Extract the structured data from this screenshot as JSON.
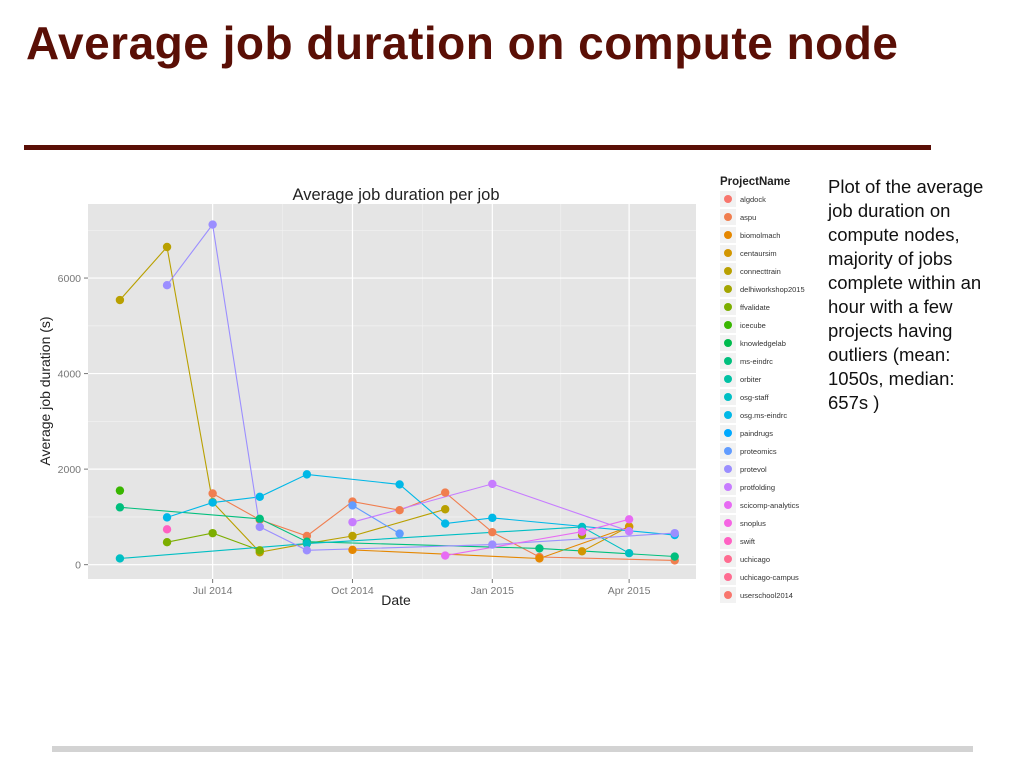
{
  "slide": {
    "title": "Average job duration on compute node",
    "description": "Plot of the average job duration on compute nodes, majority of jobs complete within an hour with a few projects having outliers (mean:  1050s, median: 657s )"
  },
  "colors": {
    "title": "#5a0f06",
    "panel_bg": "#e5e5e5",
    "grid": "#ffffff"
  },
  "chart_data": {
    "type": "line",
    "title": "Average job duration per job",
    "xlabel": "Date",
    "ylabel": "Average job duration (s)",
    "xlim": [
      "2014-04-10",
      "2015-05-15"
    ],
    "ylim": [
      -300,
      7550
    ],
    "x_ticks": [
      {
        "date": "2014-07-01",
        "label": "Jul 2014"
      },
      {
        "date": "2014-10-01",
        "label": "Oct 2014"
      },
      {
        "date": "2015-01-01",
        "label": "Jan 2015"
      },
      {
        "date": "2015-04-01",
        "label": "Apr 2015"
      }
    ],
    "y_ticks": [
      {
        "value": 0,
        "label": "0"
      },
      {
        "value": 2000,
        "label": "2000"
      },
      {
        "value": 4000,
        "label": "4000"
      },
      {
        "value": 6000,
        "label": "6000"
      }
    ],
    "legend_title": "ProjectName",
    "series": [
      {
        "name": "algdock",
        "color": "#F8766D",
        "points": []
      },
      {
        "name": "aspu",
        "color": "#F07E4F",
        "points": [
          [
            "2014-07-01",
            1490
          ],
          [
            "2014-08-01",
            940
          ],
          [
            "2014-09-01",
            600
          ],
          [
            "2014-10-01",
            1320
          ],
          [
            "2014-11-01",
            1140
          ],
          [
            "2014-12-01",
            1510
          ],
          [
            "2015-01-01",
            680
          ],
          [
            "2015-02-01",
            160
          ],
          [
            "2015-05-01",
            90
          ]
        ]
      },
      {
        "name": "biomolmach",
        "color": "#E58700",
        "points": [
          [
            "2014-10-01",
            310
          ],
          [
            "2015-02-01",
            130
          ],
          [
            "2015-04-01",
            790
          ]
        ]
      },
      {
        "name": "centaursim",
        "color": "#D29600",
        "points": [
          [
            "2015-03-01",
            280
          ],
          [
            "2015-04-01",
            800
          ]
        ]
      },
      {
        "name": "connecttrain",
        "color": "#B9A000",
        "points": [
          [
            "2014-05-01",
            5540
          ],
          [
            "2014-06-01",
            6650
          ],
          [
            "2014-07-01",
            1310
          ],
          [
            "2014-08-01",
            260
          ],
          [
            "2014-09-01",
            440
          ],
          [
            "2014-10-01",
            600
          ],
          [
            "2014-12-01",
            1160
          ]
        ]
      },
      {
        "name": "delhiworkshop2015",
        "color": "#A3A500",
        "points": [
          [
            "2015-03-01",
            620
          ]
        ]
      },
      {
        "name": "ffvalidate",
        "color": "#7CAE00",
        "points": [
          [
            "2014-06-01",
            470
          ],
          [
            "2014-07-01",
            660
          ],
          [
            "2014-08-01",
            300
          ]
        ]
      },
      {
        "name": "icecube",
        "color": "#39B600",
        "points": [
          [
            "2014-05-01",
            1550
          ]
        ]
      },
      {
        "name": "knowledgelab",
        "color": "#00BB4E",
        "points": []
      },
      {
        "name": "ms-eindrc",
        "color": "#00BF7D",
        "points": [
          [
            "2014-05-01",
            1200
          ],
          [
            "2014-08-01",
            960
          ],
          [
            "2014-09-01",
            480
          ],
          [
            "2015-02-01",
            340
          ],
          [
            "2015-05-01",
            170
          ]
        ]
      },
      {
        "name": "orbiter",
        "color": "#00C1A3",
        "points": []
      },
      {
        "name": "osg-staff",
        "color": "#00BFC4",
        "points": [
          [
            "2014-05-01",
            130
          ],
          [
            "2014-09-01",
            440
          ],
          [
            "2015-03-01",
            790
          ],
          [
            "2015-04-01",
            240
          ]
        ]
      },
      {
        "name": "osg.ms-eindrc",
        "color": "#00B8E7",
        "points": [
          [
            "2014-06-01",
            990
          ],
          [
            "2014-07-01",
            1300
          ],
          [
            "2014-08-01",
            1420
          ],
          [
            "2014-09-01",
            1890
          ],
          [
            "2014-11-01",
            1680
          ],
          [
            "2014-12-01",
            860
          ],
          [
            "2015-01-01",
            980
          ],
          [
            "2015-05-01",
            620
          ]
        ]
      },
      {
        "name": "paindrugs",
        "color": "#00A9FF",
        "points": []
      },
      {
        "name": "proteomics",
        "color": "#619CFF",
        "points": [
          [
            "2014-10-01",
            1240
          ],
          [
            "2014-11-01",
            650
          ]
        ]
      },
      {
        "name": "protevol",
        "color": "#9B8EFF",
        "points": [
          [
            "2014-06-01",
            5850
          ],
          [
            "2014-07-01",
            7120
          ],
          [
            "2014-08-01",
            790
          ],
          [
            "2014-09-01",
            300
          ],
          [
            "2015-01-01",
            420
          ],
          [
            "2015-05-01",
            660
          ]
        ]
      },
      {
        "name": "protfolding",
        "color": "#C77CFF",
        "points": [
          [
            "2014-10-01",
            890
          ],
          [
            "2015-01-01",
            1690
          ],
          [
            "2015-04-01",
            700
          ]
        ]
      },
      {
        "name": "scicomp-analytics",
        "color": "#E76BF3",
        "points": [
          [
            "2014-12-01",
            190
          ],
          [
            "2015-03-01",
            690
          ],
          [
            "2015-04-01",
            950
          ]
        ]
      },
      {
        "name": "snoplus",
        "color": "#F564E3",
        "points": []
      },
      {
        "name": "swift",
        "color": "#FF61C3",
        "points": [
          [
            "2014-06-01",
            740
          ]
        ]
      },
      {
        "name": "uchicago",
        "color": "#FF6C91",
        "points": []
      },
      {
        "name": "uchicago-campus",
        "color": "#FF6C91",
        "points": []
      },
      {
        "name": "userschool2014",
        "color": "#F8766D",
        "points": []
      }
    ]
  }
}
